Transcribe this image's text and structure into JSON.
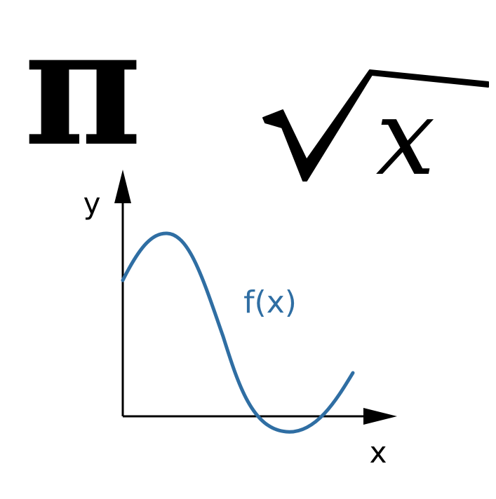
{
  "symbols": {
    "pi": "π",
    "radicand": "x"
  },
  "graph": {
    "y_axis_label": "y",
    "x_axis_label": "x",
    "function_label": "f(x)"
  },
  "colors": {
    "ink": "#000000",
    "curve": "#2f6ea3",
    "background": "#ffffff"
  },
  "icons": {
    "pi": "pi-symbol-icon",
    "sqrt": "square-root-icon"
  }
}
